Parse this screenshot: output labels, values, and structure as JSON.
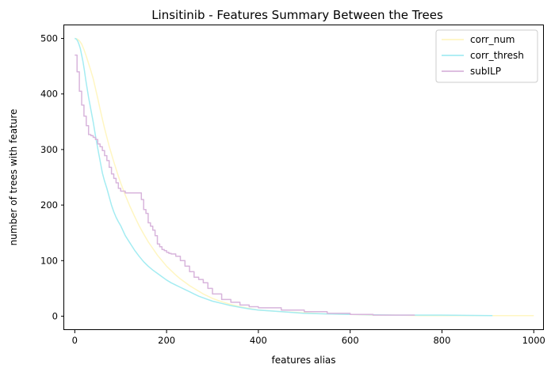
{
  "chart_data": {
    "type": "line",
    "title": "Linsitinib - Features Summary Between the Trees",
    "xlabel": "features alias",
    "ylabel": "number of trees with feature",
    "xlim": [
      -23,
      1022
    ],
    "ylim": [
      -25,
      525
    ],
    "xticks": [
      0,
      200,
      400,
      600,
      800,
      1000
    ],
    "xtick_labels": [
      "0",
      "200",
      "400",
      "600",
      "800",
      "1000"
    ],
    "yticks": [
      0,
      100,
      200,
      300,
      400,
      500
    ],
    "ytick_labels": [
      "0",
      "100",
      "200",
      "300",
      "400",
      "500"
    ],
    "grid": false,
    "legend": "top-right",
    "series": [
      {
        "name": "corr_num",
        "color": "#fff6c2",
        "step": false,
        "x": [
          0,
          5,
          10,
          15,
          20,
          25,
          30,
          35,
          40,
          45,
          50,
          55,
          60,
          65,
          70,
          75,
          80,
          85,
          90,
          95,
          100,
          110,
          120,
          130,
          140,
          150,
          160,
          170,
          180,
          190,
          200,
          210,
          220,
          230,
          240,
          250,
          260,
          270,
          280,
          290,
          300,
          320,
          340,
          360,
          380,
          400,
          450,
          500,
          550,
          600,
          650,
          700,
          750,
          800,
          850,
          900,
          950,
          1000
        ],
        "y": [
          500,
          499,
          496,
          490,
          480,
          468,
          455,
          442,
          428,
          410,
          392,
          373,
          355,
          338,
          322,
          306,
          292,
          278,
          265,
          252,
          240,
          218,
          198,
          180,
          163,
          148,
          134,
          122,
          110,
          100,
          90,
          82,
          74,
          67,
          61,
          55,
          50,
          45,
          40,
          36,
          32,
          26,
          21,
          17,
          14,
          11,
          8,
          6,
          4,
          3,
          2,
          2,
          1,
          1,
          1,
          1,
          1,
          1
        ]
      },
      {
        "name": "corr_thresh",
        "color": "#a4ecf2",
        "step": false,
        "x": [
          0,
          3,
          6,
          9,
          12,
          15,
          18,
          21,
          24,
          27,
          30,
          35,
          40,
          45,
          50,
          55,
          60,
          65,
          70,
          75,
          80,
          85,
          90,
          95,
          100,
          110,
          120,
          130,
          140,
          150,
          160,
          170,
          180,
          190,
          200,
          210,
          220,
          230,
          240,
          250,
          260,
          270,
          280,
          290,
          300,
          320,
          340,
          360,
          380,
          400,
          450,
          500,
          550,
          600,
          700,
          800,
          910
        ],
        "y": [
          500,
          499,
          496,
          490,
          482,
          470,
          458,
          442,
          425,
          410,
          394,
          372,
          350,
          325,
          302,
          280,
          258,
          243,
          230,
          215,
          200,
          188,
          178,
          170,
          163,
          145,
          132,
          119,
          108,
          98,
          90,
          83,
          77,
          71,
          65,
          60,
          56,
          52,
          48,
          44,
          40,
          36,
          33,
          30,
          27,
          23,
          19,
          16,
          13,
          11,
          8,
          5,
          4,
          3,
          2,
          2,
          1
        ]
      },
      {
        "name": "subILP",
        "color": "#d8b5dc",
        "step": true,
        "x": [
          0,
          5,
          10,
          15,
          20,
          25,
          30,
          35,
          40,
          45,
          50,
          55,
          60,
          65,
          70,
          75,
          80,
          85,
          90,
          95,
          100,
          110,
          120,
          130,
          140,
          145,
          150,
          155,
          160,
          165,
          170,
          175,
          180,
          185,
          190,
          195,
          200,
          205,
          210,
          220,
          230,
          240,
          250,
          260,
          270,
          280,
          290,
          300,
          320,
          340,
          360,
          380,
          400,
          450,
          500,
          550,
          600,
          650,
          700,
          740
        ],
        "y": [
          470,
          440,
          405,
          380,
          360,
          343,
          327,
          325,
          322,
          318,
          310,
          305,
          298,
          289,
          280,
          268,
          256,
          248,
          240,
          230,
          225,
          222,
          222,
          222,
          222,
          210,
          192,
          185,
          168,
          162,
          155,
          145,
          130,
          125,
          120,
          118,
          115,
          113,
          112,
          108,
          100,
          90,
          80,
          70,
          66,
          60,
          50,
          40,
          30,
          25,
          20,
          17,
          15,
          11,
          8,
          5,
          3,
          2,
          2,
          1
        ]
      }
    ]
  }
}
